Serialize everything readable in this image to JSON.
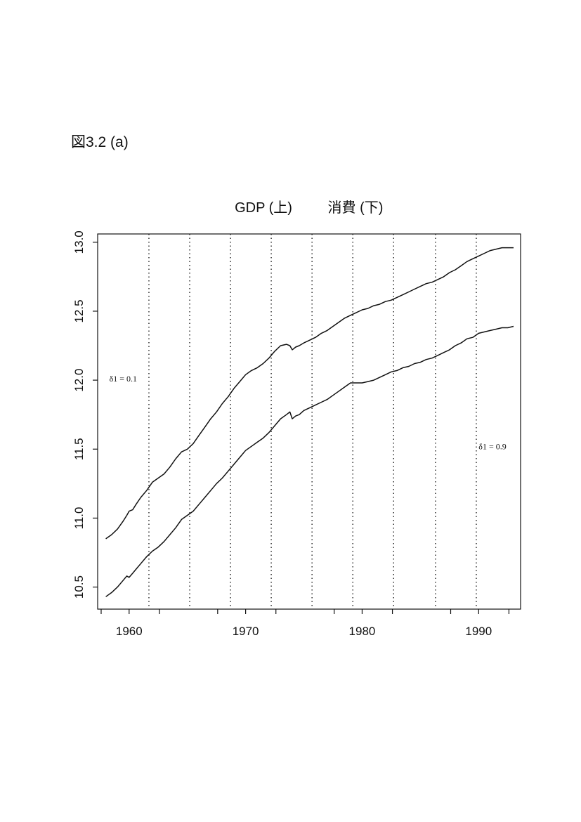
{
  "figure_label": "図3.2 (a)",
  "chart_data": {
    "type": "line",
    "title_left": "GDP (上)",
    "title_right": "消費 (下)",
    "xlabel": "",
    "ylabel": "",
    "xlim": [
      1957.3,
      1993.6
    ],
    "ylim": [
      10.34,
      13.06
    ],
    "x_ticks": [
      1960,
      1970,
      1980,
      1990
    ],
    "x_tick_labels": [
      "1960",
      "1970",
      "1980",
      "1990"
    ],
    "x_minor_ticks": [
      1957.6,
      1962.6,
      1967.6,
      1972.6,
      1977.6,
      1982.6,
      1987.6,
      1992.6
    ],
    "y_ticks": [
      10.5,
      11.0,
      11.5,
      12.0,
      12.5,
      13.0
    ],
    "y_tick_labels": [
      "10.5",
      "11.0",
      "11.5",
      "12.0",
      "12.5",
      "13.0"
    ],
    "vertical_dotted_lines": [
      1961.7,
      1965.2,
      1968.7,
      1972.2,
      1975.7,
      1979.2,
      1982.7,
      1986.3,
      1989.8
    ],
    "grid": false,
    "annotations": [
      {
        "text": "δ1 = 0.1",
        "x": 1958.3,
        "y": 11.99
      },
      {
        "text": "δ1 = 0.9",
        "x": 1990.0,
        "y": 11.5
      }
    ],
    "series": [
      {
        "x": [
          1958.0,
          1958.5,
          1959.0,
          1959.5,
          1959.8,
          1960.0,
          1960.3,
          1960.6,
          1961.0,
          1961.5,
          1962.0,
          1962.5,
          1963.0,
          1963.5,
          1964.0,
          1964.5,
          1965.0,
          1965.5,
          1966.0,
          1966.5,
          1967.0,
          1967.5,
          1968.0,
          1968.5,
          1969.0,
          1969.5,
          1970.0,
          1970.5,
          1971.0,
          1971.5,
          1972.0,
          1972.5,
          1973.0,
          1973.5,
          1973.8,
          1974.0,
          1974.3,
          1974.6,
          1975.0,
          1975.5,
          1976.0,
          1976.5,
          1977.0,
          1977.5,
          1978.0,
          1978.5,
          1979.0,
          1979.5,
          1980.0,
          1980.5,
          1981.0,
          1981.5,
          1982.0,
          1982.5,
          1983.0,
          1983.5,
          1984.0,
          1984.5,
          1985.0,
          1985.5,
          1986.0,
          1986.5,
          1987.0,
          1987.5,
          1988.0,
          1988.5,
          1989.0,
          1989.5,
          1990.0,
          1990.5,
          1991.0,
          1991.5,
          1992.0,
          1992.5,
          1993.0
        ],
        "values": [
          10.85,
          10.88,
          10.92,
          10.98,
          11.02,
          11.05,
          11.06,
          11.1,
          11.15,
          11.2,
          11.26,
          11.29,
          11.32,
          11.37,
          11.43,
          11.48,
          11.5,
          11.54,
          11.6,
          11.66,
          11.72,
          11.77,
          11.83,
          11.88,
          11.94,
          11.99,
          12.04,
          12.07,
          12.09,
          12.12,
          12.16,
          12.21,
          12.25,
          12.26,
          12.25,
          12.22,
          12.24,
          12.25,
          12.27,
          12.29,
          12.31,
          12.34,
          12.36,
          12.39,
          12.42,
          12.45,
          12.47,
          12.49,
          12.51,
          12.52,
          12.54,
          12.55,
          12.57,
          12.58,
          12.6,
          12.62,
          12.64,
          12.66,
          12.68,
          12.7,
          12.71,
          12.73,
          12.75,
          12.78,
          12.8,
          12.83,
          12.86,
          12.88,
          12.9,
          12.92,
          12.94,
          12.95,
          12.96,
          12.96,
          12.96
        ]
      },
      {
        "x": [
          1958.0,
          1958.5,
          1959.0,
          1959.5,
          1959.8,
          1960.0,
          1960.3,
          1960.6,
          1961.0,
          1961.5,
          1962.0,
          1962.5,
          1963.0,
          1963.5,
          1964.0,
          1964.5,
          1965.0,
          1965.5,
          1966.0,
          1966.5,
          1967.0,
          1967.5,
          1968.0,
          1968.5,
          1969.0,
          1969.5,
          1970.0,
          1970.5,
          1971.0,
          1971.5,
          1972.0,
          1972.5,
          1973.0,
          1973.5,
          1973.8,
          1974.0,
          1974.3,
          1974.6,
          1975.0,
          1975.5,
          1976.0,
          1976.5,
          1977.0,
          1977.5,
          1978.0,
          1978.5,
          1979.0,
          1979.5,
          1980.0,
          1980.5,
          1981.0,
          1981.5,
          1982.0,
          1982.5,
          1983.0,
          1983.5,
          1984.0,
          1984.5,
          1985.0,
          1985.5,
          1986.0,
          1986.5,
          1987.0,
          1987.5,
          1988.0,
          1988.5,
          1989.0,
          1989.5,
          1990.0,
          1990.5,
          1991.0,
          1991.5,
          1992.0,
          1992.5,
          1993.0
        ],
        "values": [
          10.43,
          10.46,
          10.5,
          10.55,
          10.58,
          10.57,
          10.6,
          10.63,
          10.67,
          10.72,
          10.76,
          10.79,
          10.83,
          10.88,
          10.93,
          10.99,
          11.02,
          11.05,
          11.1,
          11.15,
          11.2,
          11.25,
          11.29,
          11.34,
          11.39,
          11.44,
          11.49,
          11.52,
          11.55,
          11.58,
          11.62,
          11.67,
          11.72,
          11.75,
          11.77,
          11.72,
          11.74,
          11.75,
          11.78,
          11.8,
          11.82,
          11.84,
          11.86,
          11.89,
          11.92,
          11.95,
          11.98,
          11.98,
          11.98,
          11.99,
          12.0,
          12.02,
          12.04,
          12.06,
          12.07,
          12.09,
          12.1,
          12.12,
          12.13,
          12.15,
          12.16,
          12.18,
          12.2,
          12.22,
          12.25,
          12.27,
          12.3,
          12.31,
          12.34,
          12.35,
          12.36,
          12.37,
          12.38,
          12.38,
          12.39
        ]
      }
    ]
  }
}
